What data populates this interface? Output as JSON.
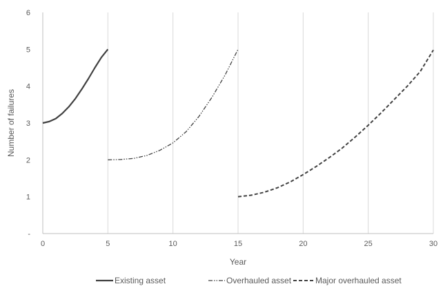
{
  "chart_data": {
    "type": "line",
    "title": "",
    "xlabel": "Year",
    "ylabel": "Number of failures",
    "xlim": [
      0,
      30
    ],
    "ylim": [
      0,
      6
    ],
    "x_ticks": [
      "0",
      "5",
      "10",
      "15",
      "20",
      "25",
      "30"
    ],
    "y_ticks": [
      "-",
      "1",
      "2",
      "3",
      "4",
      "5",
      "6"
    ],
    "grid": "vertical",
    "legend_position": "bottom",
    "series": [
      {
        "name": "Existing asset",
        "style": "solid",
        "color": "#404040",
        "x": [
          0,
          0.5,
          1,
          1.5,
          2,
          2.5,
          3,
          3.5,
          4,
          4.5,
          5
        ],
        "y": [
          3.0,
          3.04,
          3.12,
          3.26,
          3.44,
          3.66,
          3.92,
          4.2,
          4.5,
          4.78,
          5.0
        ]
      },
      {
        "name": "Overhauled asset",
        "style": "dash-dot-dot",
        "color": "#404040",
        "x": [
          5,
          6,
          7,
          8,
          9,
          10,
          11,
          12,
          13,
          14,
          15
        ],
        "y": [
          2.0,
          2.01,
          2.04,
          2.12,
          2.26,
          2.46,
          2.76,
          3.18,
          3.7,
          4.3,
          5.0
        ]
      },
      {
        "name": "Major overhauled asset",
        "style": "dashed",
        "color": "#404040",
        "x": [
          15,
          16,
          17,
          18,
          19,
          20,
          21,
          22,
          23,
          24,
          25,
          26,
          27,
          28,
          29,
          30
        ],
        "y": [
          1.0,
          1.04,
          1.12,
          1.24,
          1.4,
          1.6,
          1.82,
          2.06,
          2.32,
          2.62,
          2.94,
          3.28,
          3.64,
          4.0,
          4.4,
          4.98
        ]
      }
    ]
  }
}
